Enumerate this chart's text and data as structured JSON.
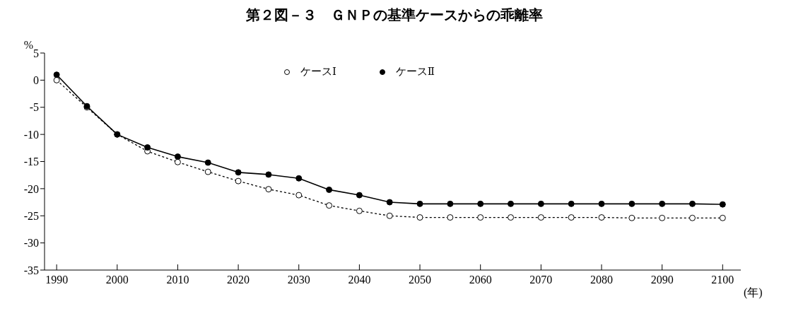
{
  "chart_data": {
    "type": "line",
    "title": "第２図－３　ＧＮＰの基準ケースからの乖離率",
    "xlabel": "(年)",
    "ylabel": "%",
    "x": [
      1990,
      1995,
      2000,
      2005,
      2010,
      2015,
      2020,
      2025,
      2030,
      2035,
      2040,
      2045,
      2050,
      2055,
      2060,
      2065,
      2070,
      2075,
      2080,
      2085,
      2090,
      2095,
      2100
    ],
    "series": [
      {
        "name": "ケースⅠ",
        "color": "#000000",
        "line_style": "dotted",
        "marker": "circle",
        "values": [
          0,
          -5,
          -10,
          -13.1,
          -15.1,
          -16.9,
          -18.6,
          -20.1,
          -21.2,
          -23.1,
          -24.1,
          -25,
          -25.3,
          -25.3,
          -25.3,
          -25.3,
          -25.3,
          -25.3,
          -25.3,
          -25.4,
          -25.4,
          -25.4,
          -25.4
        ]
      },
      {
        "name": "ケースⅡ",
        "color": "#000000",
        "line_style": "solid",
        "marker": "circle",
        "values": [
          1,
          -4.8,
          -10,
          -12.4,
          -14.1,
          -15.2,
          -17,
          -17.4,
          -18.1,
          -20.2,
          -21.2,
          -22.5,
          -22.8,
          -22.8,
          -22.8,
          -22.8,
          -22.8,
          -22.8,
          -22.8,
          -22.8,
          -22.8,
          -22.8,
          -22.9
        ]
      }
    ],
    "xlim": [
      1988,
      2103
    ],
    "xticks": [
      1990,
      2000,
      2010,
      2020,
      2030,
      2040,
      2050,
      2060,
      2070,
      2080,
      2090,
      2100
    ],
    "ylim": [
      -35,
      5
    ],
    "yticks": [
      -35,
      -30,
      -25,
      -20,
      -15,
      -10,
      -5,
      0,
      5
    ],
    "grid": false,
    "legend": "top"
  }
}
